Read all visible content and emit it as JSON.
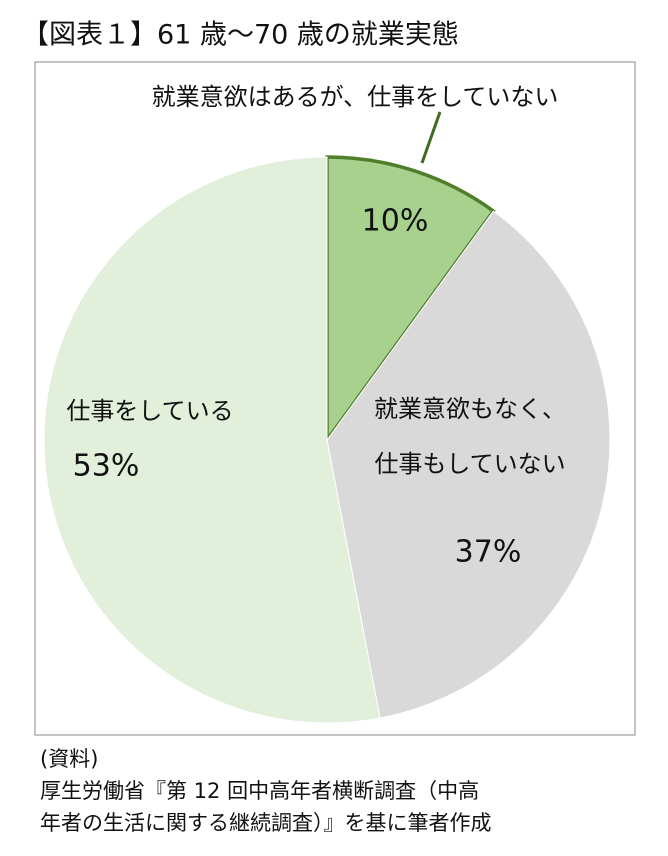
{
  "chart_data": {
    "type": "pie",
    "title": "【図表１】61 歳～70 歳の就業実態",
    "categories": [
      "就業意欲はあるが、仕事をしていない",
      "就業意欲もなく、\n仕事もしていない",
      "仕事をしている"
    ],
    "values": [
      10,
      37,
      53
    ],
    "value_labels": [
      "10%",
      "37%",
      "53%"
    ],
    "colors": [
      "#a9d18e",
      "#d9d9d9",
      "#e2efda"
    ],
    "source": [
      "(資料)",
      "厚生労働省『第 12 回中高年者横断調査（中高",
      "年者の生活に関する継続調査）』を基に筆者作成"
    ]
  }
}
